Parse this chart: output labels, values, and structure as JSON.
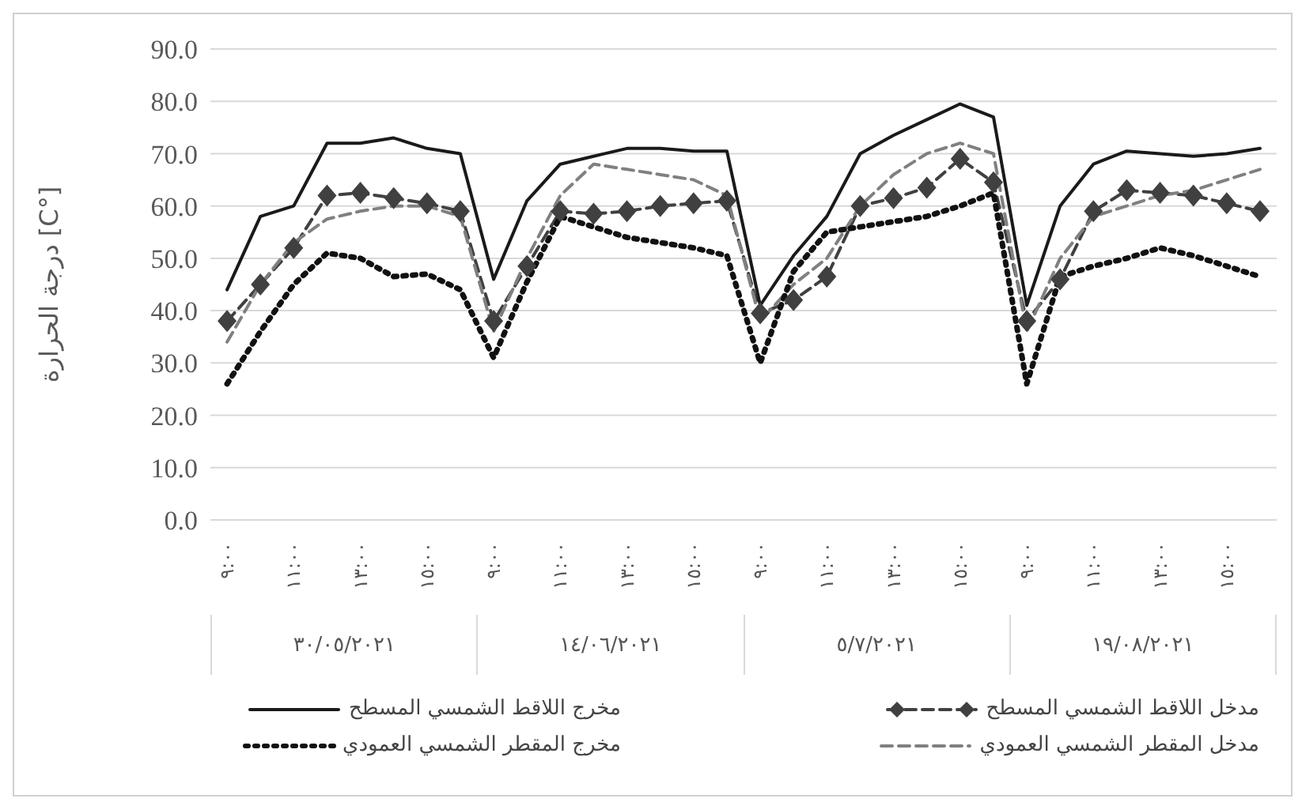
{
  "chart_data": {
    "type": "line",
    "ylabel": "درجة الحرارة [C°]",
    "categories": [
      "٩:٠٠",
      null,
      "١١:٠٠",
      null,
      "١٣:٠٠",
      null,
      "١٥:٠٠",
      null,
      "٩:٠٠",
      null,
      "١١:٠٠",
      null,
      "١٣:٠٠",
      null,
      "١٥:٠٠",
      null,
      "٩:٠٠",
      null,
      "١١:٠٠",
      null,
      "١٣:٠٠",
      null,
      "١٥:٠٠",
      null,
      "٩:٠٠",
      null,
      "١١:٠٠",
      null,
      "١٣:٠٠",
      null,
      "١٥:٠٠",
      null
    ],
    "annotations": [
      "٣٠/٠٥/٢٠٢١",
      "١٤/٠٦/٢٠٢١",
      "٥/٧/٢٠٢١",
      "١٩/٠٨/٢٠٢١"
    ],
    "series": [
      {
        "name": "مدخل اللاقط الشمسي المسطح",
        "color": "#404040",
        "line_style": "dashed",
        "marker": "diamond",
        "values": [
          38,
          45,
          52,
          62,
          62.5,
          61.5,
          60.5,
          59,
          38,
          48.5,
          59,
          58.5,
          59,
          60,
          60.5,
          61,
          39.5,
          42,
          46.5,
          60,
          61.5,
          63.5,
          69,
          64.5,
          38,
          46,
          59,
          63,
          62.5,
          62,
          60.5,
          59
        ]
      },
      {
        "name": "مخرج اللاقط الشمسي المسطح",
        "color": "#1a1a1a",
        "line_style": "solid",
        "marker": "none",
        "values": [
          44,
          58,
          60,
          72,
          72,
          73,
          71,
          70,
          46,
          61,
          68,
          69.5,
          71,
          71,
          70.5,
          70.5,
          41,
          50.5,
          58,
          70,
          73.5,
          76.5,
          79.5,
          77,
          41,
          60,
          68,
          70.5,
          70,
          69.5,
          70,
          71
        ]
      },
      {
        "name": "مدخل المقطر الشمسي العمودي",
        "color": "#808080",
        "line_style": "dashed",
        "marker": "none",
        "values": [
          34,
          45,
          53,
          57.5,
          59,
          60,
          60,
          58,
          36,
          50,
          62,
          68,
          67,
          66,
          65,
          62,
          38,
          45,
          50,
          60,
          66,
          70,
          72,
          70,
          36,
          50,
          58,
          60,
          62,
          63,
          65,
          67
        ]
      },
      {
        "name": "مخرج المقطر الشمسي العمودي",
        "color": "#111111",
        "line_style": "dotted",
        "marker": "none",
        "values": [
          26,
          36,
          45,
          51,
          50,
          46.5,
          47,
          44,
          31,
          45.5,
          58,
          56,
          54,
          53,
          52,
          50.5,
          30,
          47.5,
          55,
          56,
          57,
          58,
          60,
          62.5,
          26,
          46.5,
          48.5,
          50,
          52,
          50.5,
          48.5,
          46.5
        ]
      }
    ],
    "ylim": [
      0,
      90
    ],
    "yticks": [
      {
        "value": 0,
        "label": "0.0"
      },
      {
        "value": 10,
        "label": "10.0"
      },
      {
        "value": 20,
        "label": "20.0"
      },
      {
        "value": 30,
        "label": "30.0"
      },
      {
        "value": 40,
        "label": "40.0"
      },
      {
        "value": 50,
        "label": "50.0"
      },
      {
        "value": 60,
        "label": "60.0"
      },
      {
        "value": 70,
        "label": "70.0"
      },
      {
        "value": 80,
        "label": "80.0"
      },
      {
        "value": 90,
        "label": "90.0"
      }
    ],
    "grid": "y",
    "legend": "bottom"
  }
}
